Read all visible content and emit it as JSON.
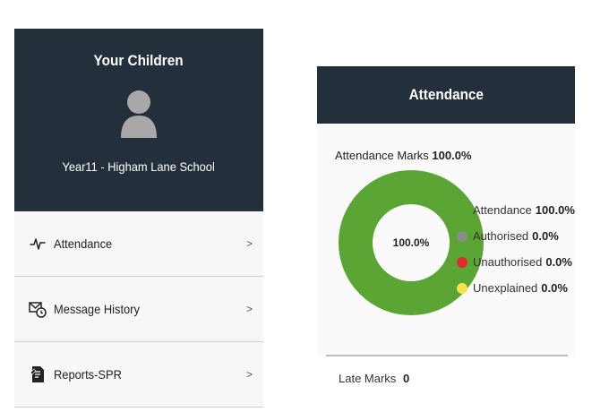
{
  "children_panel": {
    "title": "Your Children",
    "child_name": "Year11 - Higham Lane School",
    "menu_items": [
      {
        "label": "Attendance",
        "icon": "activity-pulse-icon"
      },
      {
        "label": "Message History",
        "icon": "message-clock-icon"
      },
      {
        "label": "Reports-SPR",
        "icon": "report-document-icon"
      }
    ],
    "chevron": ">"
  },
  "attendance_panel": {
    "title": "Attendance",
    "marks_label": "Attendance Marks",
    "marks_value": "100.0%",
    "donut_center": "100.0%",
    "legend": [
      {
        "label": "Attendance",
        "value": "100.0%",
        "color": "#5aa534",
        "fraction": 1.0
      },
      {
        "label": "Authorised",
        "value": "0.0%",
        "color": "#8c8c8c",
        "fraction": 0.0
      },
      {
        "label": "Unauthorised",
        "value": "0.0%",
        "color": "#e02b2b",
        "fraction": 0.0
      },
      {
        "label": "Unexplained",
        "value": "0.0%",
        "color": "#f7e347",
        "fraction": 0.0
      }
    ],
    "late_label": "Late Marks",
    "late_value": "0"
  },
  "colors": {
    "header_bg": "#232f3a",
    "panel_bg": "#f7f7f7",
    "donut_green": "#5aa534"
  }
}
